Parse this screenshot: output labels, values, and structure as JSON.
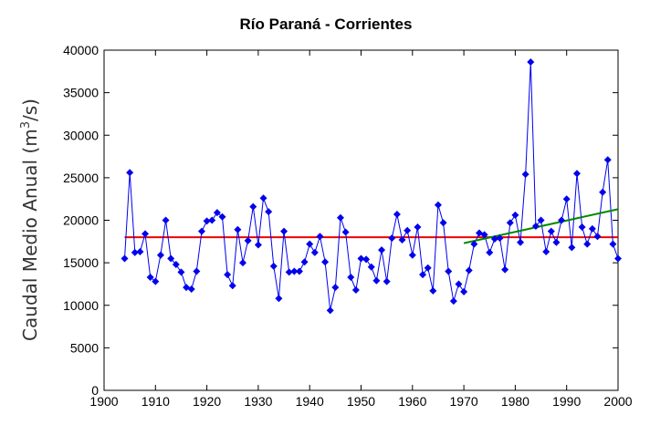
{
  "chart_data": {
    "type": "line",
    "title": "Río Paraná - Corrientes",
    "ylabel_main": "Caudal Medio Anual (m",
    "ylabel_sup": "3",
    "ylabel_tail": "/s)",
    "xlabel": "",
    "xlim": [
      1900,
      2000
    ],
    "ylim": [
      0,
      40000
    ],
    "xticks": [
      "1900",
      "1910",
      "1920",
      "1930",
      "1940",
      "1950",
      "1960",
      "1970",
      "1980",
      "1990",
      "2000"
    ],
    "yticks": [
      "0",
      "5000",
      "10000",
      "15000",
      "20000",
      "25000",
      "30000",
      "35000",
      "40000"
    ],
    "grid": false,
    "legend": "none",
    "colors": {
      "series": "#0000ee",
      "mean": "#ee0000",
      "trend": "#008800"
    },
    "series": [
      {
        "type": "line-markers",
        "marker": "diamond",
        "x": [
          1904,
          1905,
          1906,
          1907,
          1908,
          1909,
          1910,
          1911,
          1912,
          1913,
          1914,
          1915,
          1916,
          1917,
          1918,
          1919,
          1920,
          1921,
          1922,
          1923,
          1924,
          1925,
          1926,
          1927,
          1928,
          1929,
          1930,
          1931,
          1932,
          1933,
          1934,
          1935,
          1936,
          1937,
          1938,
          1939,
          1940,
          1941,
          1942,
          1943,
          1944,
          1945,
          1946,
          1947,
          1948,
          1949,
          1950,
          1951,
          1952,
          1953,
          1954,
          1955,
          1956,
          1957,
          1958,
          1959,
          1960,
          1961,
          1962,
          1963,
          1964,
          1965,
          1966,
          1967,
          1968,
          1969,
          1970,
          1971,
          1972,
          1973,
          1974,
          1975,
          1976,
          1977,
          1978,
          1979,
          1980,
          1981,
          1982,
          1983,
          1984,
          1985,
          1986,
          1987,
          1988,
          1989,
          1990,
          1991,
          1992,
          1993,
          1994,
          1995,
          1996,
          1997,
          1998,
          1999,
          2000
        ],
        "y": [
          15500,
          25600,
          16200,
          16300,
          18400,
          13300,
          12800,
          15900,
          20000,
          15500,
          14800,
          13900,
          12100,
          11900,
          14000,
          18700,
          19900,
          20000,
          20900,
          20400,
          13600,
          12300,
          18900,
          15000,
          17600,
          21600,
          17100,
          22600,
          21000,
          14600,
          10800,
          18700,
          13900,
          14000,
          14000,
          15100,
          17200,
          16200,
          18100,
          15100,
          9400,
          12100,
          20300,
          18600,
          13300,
          11800,
          15500,
          15400,
          14500,
          12900,
          16500,
          12800,
          17900,
          20700,
          17700,
          18800,
          15900,
          19200,
          13600,
          14400,
          11700,
          21800,
          19700,
          14000,
          10500,
          12500,
          11600,
          14100,
          17200,
          18500,
          18300,
          16200,
          17800,
          17900,
          14200,
          19700,
          20600,
          17400,
          25400,
          38600,
          19300,
          20000,
          16300,
          18700,
          17400,
          20000,
          22500,
          16800,
          25500,
          19200,
          17200,
          19000,
          18100,
          23300,
          27100,
          17200,
          15500
        ]
      },
      {
        "type": "mean-line",
        "y": 18000,
        "x": [
          1904,
          2000
        ]
      },
      {
        "type": "trend-line",
        "x": [
          1970,
          2000
        ],
        "y": [
          17300,
          21300
        ]
      }
    ]
  }
}
